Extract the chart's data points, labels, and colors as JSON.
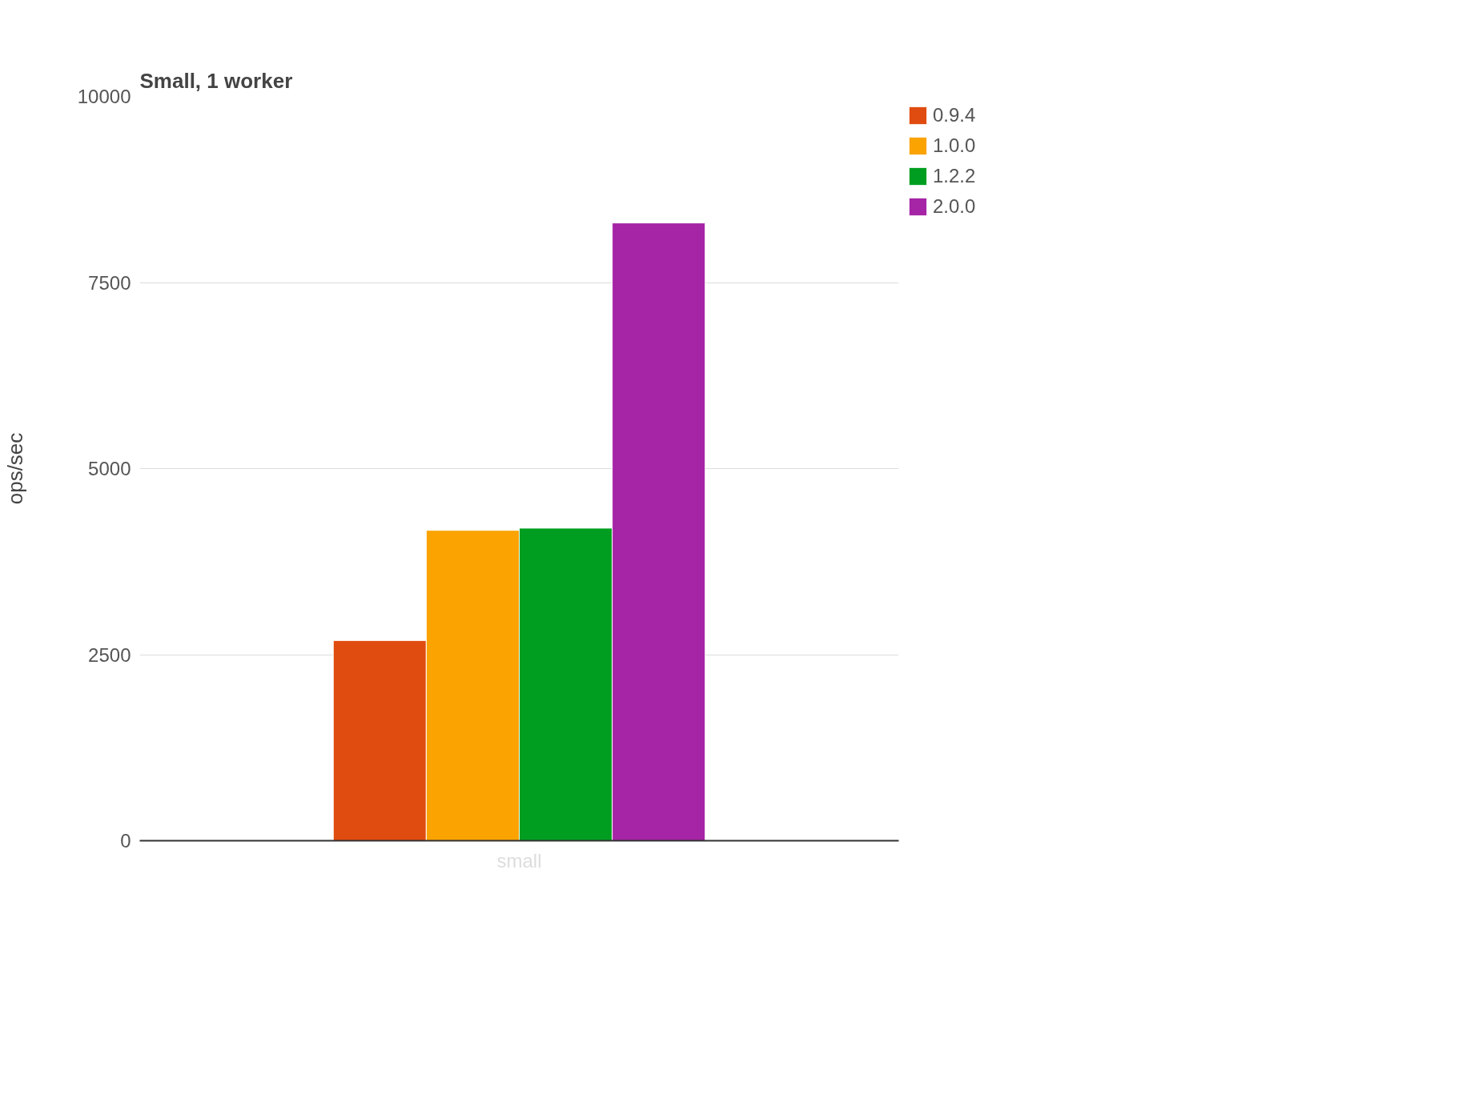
{
  "chart_data": {
    "type": "bar",
    "title": "Small, 1 worker",
    "ylabel": "ops/sec",
    "categories": [
      "small"
    ],
    "series": [
      {
        "name": "0.9.4",
        "color": "#e04c10",
        "values": [
          2690
        ]
      },
      {
        "name": "1.0.0",
        "color": "#fba300",
        "values": [
          4170
        ]
      },
      {
        "name": "1.2.2",
        "color": "#009e20",
        "values": [
          4200
        ]
      },
      {
        "name": "2.0.0",
        "color": "#a624a6",
        "values": [
          8300
        ]
      }
    ],
    "ylim": [
      0,
      10000
    ],
    "yticks": [
      0,
      2500,
      5000,
      7500,
      10000
    ],
    "grid": "y",
    "legend": "top right"
  }
}
